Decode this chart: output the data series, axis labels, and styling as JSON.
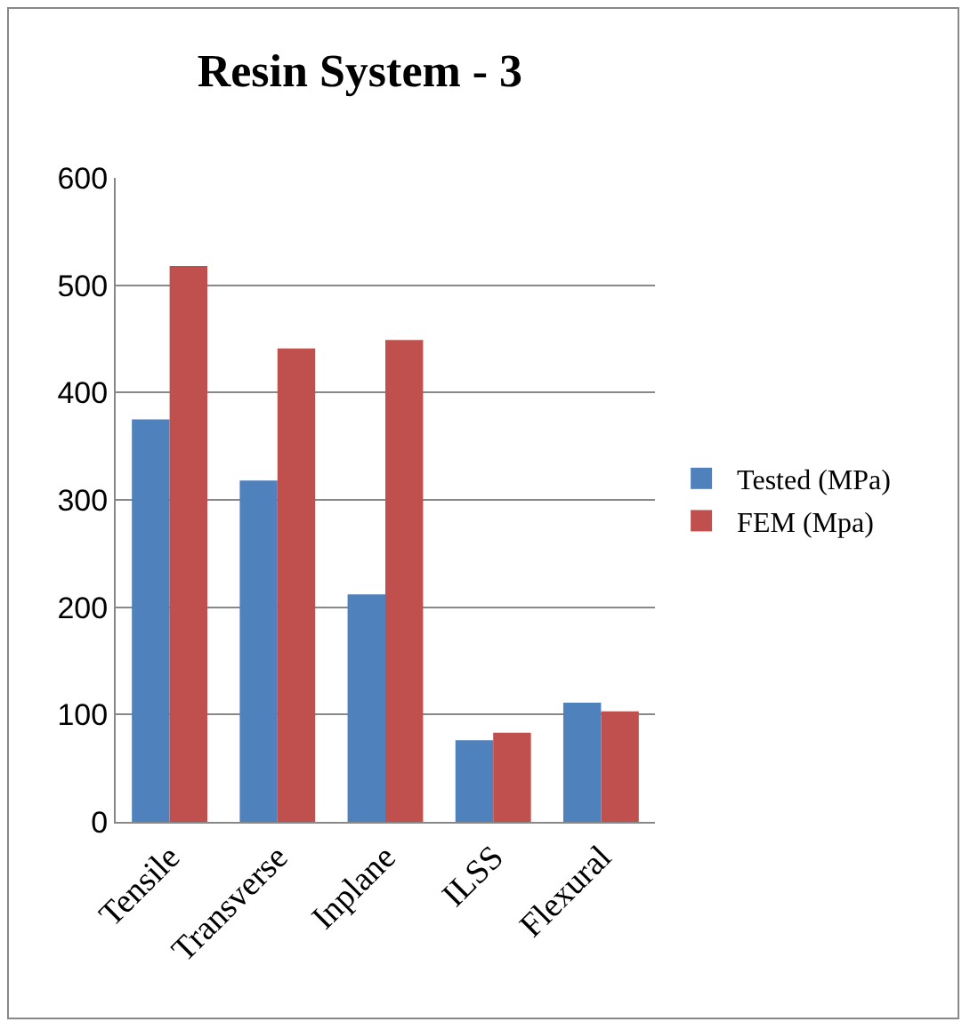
{
  "chart_data": {
    "type": "bar",
    "title": "Resin System - 3",
    "categories": [
      "Tensile",
      "Transverse",
      "Inplane",
      "ILSS",
      "Flexural"
    ],
    "series": [
      {
        "name": "Tested (MPa)",
        "color": "#4f81bd",
        "values": [
          375,
          318,
          212,
          76,
          111
        ]
      },
      {
        "name": "FEM (Mpa)",
        "color": "#c0504d",
        "values": [
          518,
          441,
          449,
          83,
          103
        ]
      }
    ],
    "ylim": [
      0,
      600
    ],
    "yticks": [
      0,
      100,
      200,
      300,
      400,
      500,
      600
    ],
    "grid": "y",
    "legend": "right"
  }
}
